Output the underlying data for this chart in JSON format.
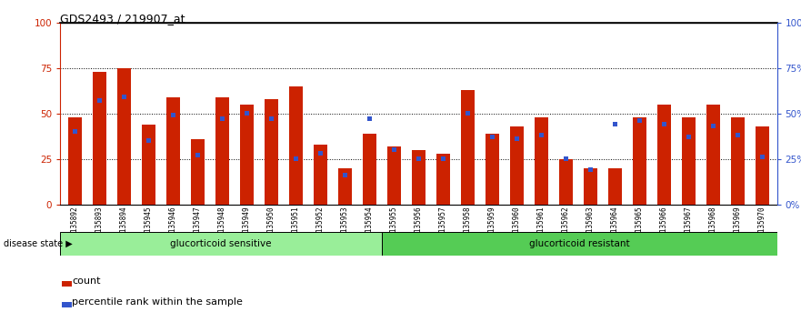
{
  "title": "GDS2493 / 219907_at",
  "samples": [
    "GSM135892",
    "GSM135893",
    "GSM135894",
    "GSM135945",
    "GSM135946",
    "GSM135947",
    "GSM135948",
    "GSM135949",
    "GSM135950",
    "GSM135951",
    "GSM135952",
    "GSM135953",
    "GSM135954",
    "GSM135955",
    "GSM135956",
    "GSM135957",
    "GSM135958",
    "GSM135959",
    "GSM135960",
    "GSM135961",
    "GSM135962",
    "GSM135963",
    "GSM135964",
    "GSM135965",
    "GSM135966",
    "GSM135967",
    "GSM135968",
    "GSM135969",
    "GSM135970"
  ],
  "count_values": [
    48,
    73,
    75,
    44,
    59,
    36,
    59,
    55,
    58,
    65,
    33,
    20,
    39,
    32,
    30,
    28,
    63,
    39,
    43,
    48,
    25,
    20,
    20,
    48,
    55,
    48,
    55,
    48,
    43
  ],
  "percentile_values": [
    40,
    57,
    59,
    35,
    49,
    27,
    47,
    50,
    47,
    25,
    28,
    16,
    47,
    30,
    25,
    25,
    50,
    37,
    36,
    38,
    25,
    19,
    44,
    46,
    44,
    37,
    43,
    38,
    26
  ],
  "sensitive_count": 13,
  "resistant_count": 16,
  "sensitive_label": "glucorticoid sensitive",
  "resistant_label": "glucorticoid resistant",
  "disease_state_label": "disease state",
  "bar_color_red": "#cc2200",
  "bar_color_blue": "#3355cc",
  "sensitive_bg": "#99ee99",
  "resistant_bg": "#55cc55",
  "ylim": [
    0,
    100
  ],
  "yticks": [
    0,
    25,
    50,
    75,
    100
  ],
  "title_fontsize": 9,
  "tick_fontsize": 5.5
}
